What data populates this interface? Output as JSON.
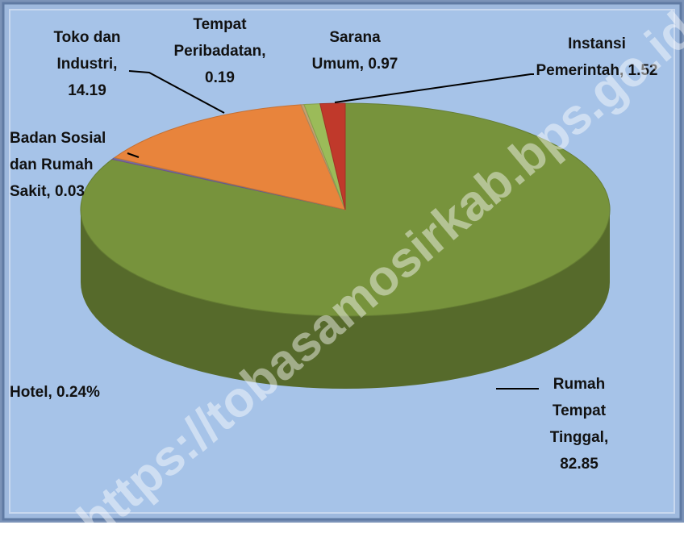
{
  "chart_data": {
    "type": "pie3d",
    "labels": [
      "Rumah Tempat Tinggal, 82.85",
      "Hotel, 0.24%",
      "Badan Sosial dan Rumah Sakit, 0.03",
      "Toko dan Industri, 14.19",
      "Tempat Peribadatan, 0.19",
      "Sarana Umum, 0.97",
      "Instansi Pemerintah, 1.52"
    ],
    "values": [
      82.85,
      0.24,
      0.03,
      14.19,
      0.19,
      0.97,
      1.52
    ],
    "colors": [
      "#77933c",
      "#8064a2",
      "#4bacc6",
      "#e8843c",
      "#c4a070",
      "#9bbb59",
      "#c0392b"
    ],
    "watermark": "https://tobasamosirkab.bps.go.id"
  }
}
